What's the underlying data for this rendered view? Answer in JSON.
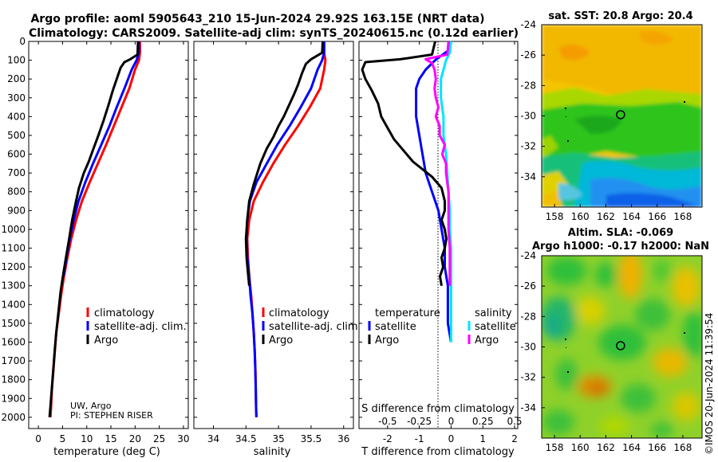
{
  "title": {
    "line1": "Argo profile: aoml 5905643_210 15-Jun-2024 29.92S 163.15E (NRT data)",
    "line2": "Climatology: CARS2009. Satellite-adj clim: synTS_20240615.nc (0.12d earlier)"
  },
  "credit": {
    "institution": "UW, Argo",
    "pi": "PI: STEPHEN RISER"
  },
  "footer": "©IMOS 20-Jun-2024 11:39:54",
  "colors": {
    "argo": "#000000",
    "climatology": "#ff0000",
    "satellite": "#0000ff",
    "sat_salinity": "#00e5ff",
    "argo_salinity": "#ff00ff"
  },
  "chart_data": [
    {
      "id": "temperature",
      "type": "line",
      "xlabel": "temperature (deg C)",
      "xlim": [
        -2,
        31
      ],
      "xticks": [
        0,
        5,
        10,
        15,
        20,
        25,
        30
      ],
      "ylim": [
        0,
        2060
      ],
      "yticks": [
        0,
        100,
        200,
        300,
        400,
        500,
        600,
        700,
        800,
        900,
        1000,
        1100,
        1200,
        1300,
        1400,
        1500,
        1600,
        1700,
        1800,
        1900,
        2000
      ],
      "legend": [
        "climatology",
        "satellite-adj. clim.",
        "Argo"
      ],
      "series": [
        {
          "name": "climatology",
          "color": "#ff0000",
          "points": [
            [
              21.0,
              0
            ],
            [
              21.0,
              60
            ],
            [
              20.8,
              100
            ],
            [
              20.0,
              150
            ],
            [
              18.8,
              250
            ],
            [
              17.2,
              350
            ],
            [
              15.6,
              450
            ],
            [
              14.0,
              550
            ],
            [
              12.3,
              650
            ],
            [
              10.6,
              750
            ],
            [
              9.0,
              850
            ],
            [
              7.8,
              950
            ],
            [
              6.8,
              1050
            ],
            [
              6.0,
              1150
            ],
            [
              5.3,
              1250
            ],
            [
              4.7,
              1350
            ],
            [
              4.2,
              1450
            ],
            [
              3.7,
              1550
            ],
            [
              3.4,
              1650
            ],
            [
              3.1,
              1750
            ],
            [
              2.8,
              1850
            ],
            [
              2.6,
              1950
            ],
            [
              2.5,
              2000
            ]
          ]
        },
        {
          "name": "satellite-adj. clim.",
          "color": "#0000ff",
          "points": [
            [
              20.8,
              0
            ],
            [
              20.8,
              60
            ],
            [
              20.3,
              100
            ],
            [
              19.3,
              150
            ],
            [
              17.8,
              250
            ],
            [
              16.2,
              350
            ],
            [
              14.7,
              450
            ],
            [
              13.0,
              550
            ],
            [
              11.3,
              650
            ],
            [
              9.7,
              750
            ],
            [
              8.3,
              850
            ],
            [
              7.3,
              950
            ],
            [
              6.5,
              1050
            ],
            [
              5.8,
              1150
            ],
            [
              5.2,
              1250
            ]
          ]
        },
        {
          "name": "Argo",
          "color": "#000000",
          "points": [
            [
              20.6,
              0
            ],
            [
              20.5,
              70
            ],
            [
              19.0,
              95
            ],
            [
              17.8,
              110
            ],
            [
              17.0,
              140
            ],
            [
              16.2,
              200
            ],
            [
              15.4,
              260
            ],
            [
              14.6,
              330
            ],
            [
              13.5,
              420
            ],
            [
              12.4,
              500
            ],
            [
              11.4,
              570
            ],
            [
              10.4,
              640
            ],
            [
              9.4,
              700
            ],
            [
              8.4,
              780
            ],
            [
              7.7,
              860
            ],
            [
              7.0,
              950
            ],
            [
              6.3,
              1060
            ],
            [
              5.7,
              1150
            ],
            [
              5.2,
              1230
            ],
            [
              4.6,
              1330
            ],
            [
              4.1,
              1450
            ],
            [
              3.7,
              1550
            ],
            [
              3.4,
              1640
            ],
            [
              3.1,
              1740
            ],
            [
              2.8,
              1840
            ],
            [
              2.5,
              1940
            ],
            [
              2.3,
              2000
            ]
          ]
        }
      ]
    },
    {
      "id": "salinity",
      "type": "line",
      "xlabel": "salinity",
      "xlim": [
        33.7,
        36.15
      ],
      "xticks": [
        34,
        34.5,
        35,
        35.5,
        36
      ],
      "ylim": [
        0,
        2060
      ],
      "legend": [
        "climatology",
        "satellite-adj. clim.",
        "Argo"
      ],
      "series": [
        {
          "name": "climatology",
          "color": "#ff0000",
          "points": [
            [
              35.7,
              0
            ],
            [
              35.7,
              60
            ],
            [
              35.72,
              100
            ],
            [
              35.7,
              150
            ],
            [
              35.64,
              250
            ],
            [
              35.48,
              350
            ],
            [
              35.3,
              450
            ],
            [
              35.1,
              550
            ],
            [
              34.92,
              650
            ],
            [
              34.76,
              750
            ],
            [
              34.62,
              850
            ],
            [
              34.55,
              950
            ],
            [
              34.52,
              1050
            ],
            [
              34.53,
              1150
            ],
            [
              34.55,
              1250
            ],
            [
              34.58,
              1350
            ],
            [
              34.6,
              1450
            ],
            [
              34.62,
              1550
            ],
            [
              34.635,
              1650
            ],
            [
              34.645,
              1750
            ],
            [
              34.65,
              1850
            ],
            [
              34.655,
              1950
            ],
            [
              34.66,
              2000
            ]
          ]
        },
        {
          "name": "satellite-adj. clim.",
          "color": "#0000ff",
          "points": [
            [
              35.7,
              0
            ],
            [
              35.7,
              60
            ],
            [
              35.67,
              100
            ],
            [
              35.6,
              150
            ],
            [
              35.5,
              250
            ],
            [
              35.34,
              350
            ],
            [
              35.17,
              450
            ],
            [
              34.98,
              550
            ],
            [
              34.82,
              650
            ],
            [
              34.66,
              750
            ],
            [
              34.56,
              850
            ],
            [
              34.52,
              950
            ],
            [
              34.51,
              1050
            ],
            [
              34.52,
              1150
            ],
            [
              34.55,
              1250
            ],
            [
              34.57,
              1350
            ],
            [
              34.6,
              1450
            ],
            [
              34.62,
              1550
            ],
            [
              34.635,
              1650
            ],
            [
              34.645,
              1750
            ],
            [
              34.65,
              1850
            ],
            [
              34.655,
              1950
            ],
            [
              34.66,
              2000
            ]
          ]
        },
        {
          "name": "Argo",
          "color": "#000000",
          "points": [
            [
              35.68,
              0
            ],
            [
              35.67,
              60
            ],
            [
              35.5,
              95
            ],
            [
              35.42,
              120
            ],
            [
              35.36,
              170
            ],
            [
              35.3,
              230
            ],
            [
              35.24,
              280
            ],
            [
              35.16,
              340
            ],
            [
              35.08,
              400
            ],
            [
              35.0,
              450
            ],
            [
              34.92,
              510
            ],
            [
              34.82,
              570
            ],
            [
              34.72,
              650
            ],
            [
              34.62,
              760
            ],
            [
              34.55,
              850
            ],
            [
              34.52,
              950
            ],
            [
              34.5,
              1050
            ],
            [
              34.51,
              1150
            ],
            [
              34.53,
              1230
            ],
            [
              34.55,
              1300
            ]
          ]
        }
      ]
    },
    {
      "id": "difference",
      "type": "line",
      "xlabel": "T difference from climatology",
      "xlabel_top": "S difference from climatology",
      "xlim": [
        -2.9,
        2.1
      ],
      "xticks": [
        -2,
        -1,
        0,
        1,
        2
      ],
      "xlim_top": [
        -0.725,
        0.525
      ],
      "xticks_top": [
        -0.5,
        -0.25,
        0,
        0.25,
        0.5
      ],
      "ylim": [
        0,
        2060
      ],
      "legend_headers": [
        "temperature",
        "salinity"
      ],
      "legend": [
        "satellite",
        "Argo",
        "satellite",
        "Argo"
      ],
      "series": [
        {
          "name": "temperature satellite",
          "color": "#0000ff",
          "axis": "T",
          "points": [
            [
              0,
              0
            ],
            [
              -0.1,
              50
            ],
            [
              -0.5,
              100
            ],
            [
              -0.8,
              150
            ],
            [
              -1.0,
              200
            ],
            [
              -1.1,
              250
            ],
            [
              -1.1,
              300
            ],
            [
              -1.1,
              400
            ],
            [
              -1.0,
              500
            ],
            [
              -0.9,
              600
            ],
            [
              -0.8,
              700
            ],
            [
              -0.6,
              800
            ],
            [
              -0.4,
              900
            ],
            [
              -0.3,
              1000
            ],
            [
              -0.2,
              1100
            ],
            [
              -0.2,
              1200
            ],
            [
              -0.1,
              1300
            ],
            [
              -0.1,
              1400
            ],
            [
              -0.1,
              1500
            ],
            [
              0,
              1600
            ]
          ]
        },
        {
          "name": "temperature Argo",
          "color": "#000000",
          "axis": "T",
          "points": [
            [
              -0.5,
              0
            ],
            [
              -0.6,
              70
            ],
            [
              -1.6,
              95
            ],
            [
              -2.7,
              110
            ],
            [
              -2.8,
              150
            ],
            [
              -2.7,
              200
            ],
            [
              -2.5,
              260
            ],
            [
              -2.3,
              330
            ],
            [
              -2.2,
              400
            ],
            [
              -2.0,
              460
            ],
            [
              -1.8,
              520
            ],
            [
              -1.5,
              580
            ],
            [
              -1.2,
              640
            ],
            [
              -0.6,
              720
            ],
            [
              -0.3,
              780
            ],
            [
              -0.2,
              850
            ],
            [
              -0.2,
              900
            ],
            [
              -0.3,
              950
            ],
            [
              -0.2,
              1000
            ],
            [
              -0.15,
              1050
            ],
            [
              -0.2,
              1100
            ],
            [
              -0.3,
              1150
            ],
            [
              -0.25,
              1200
            ],
            [
              -0.35,
              1250
            ],
            [
              -0.3,
              1300
            ]
          ]
        },
        {
          "name": "salinity satellite",
          "color": "#00e5ff",
          "axis": "S",
          "points": [
            [
              0,
              0
            ],
            [
              -0.01,
              60
            ],
            [
              -0.04,
              100
            ],
            [
              -0.06,
              150
            ],
            [
              -0.08,
              200
            ],
            [
              -0.08,
              300
            ],
            [
              -0.06,
              400
            ],
            [
              -0.06,
              500
            ],
            [
              -0.04,
              600
            ],
            [
              -0.03,
              700
            ],
            [
              -0.02,
              800
            ],
            [
              -0.01,
              900
            ],
            [
              -0.01,
              1000
            ],
            [
              0,
              1100
            ],
            [
              0,
              1200
            ],
            [
              0,
              1300
            ],
            [
              0,
              1400
            ],
            [
              0,
              1500
            ],
            [
              0,
              1600
            ]
          ]
        },
        {
          "name": "salinity Argo",
          "color": "#ff00ff",
          "axis": "S",
          "points": [
            [
              -0.02,
              0
            ],
            [
              -0.03,
              70
            ],
            [
              -0.2,
              95
            ],
            [
              -0.15,
              115
            ],
            [
              -0.13,
              150
            ],
            [
              -0.12,
              200
            ],
            [
              -0.13,
              250
            ],
            [
              -0.12,
              300
            ],
            [
              -0.1,
              350
            ],
            [
              -0.12,
              400
            ],
            [
              -0.09,
              450
            ],
            [
              -0.09,
              500
            ],
            [
              -0.05,
              550
            ],
            [
              -0.07,
              600
            ],
            [
              -0.04,
              650
            ],
            [
              -0.04,
              700
            ],
            [
              -0.03,
              750
            ],
            [
              -0.02,
              800
            ],
            [
              -0.02,
              900
            ],
            [
              -0.02,
              1000
            ],
            [
              -0.01,
              1100
            ],
            [
              -0.01,
              1200
            ],
            [
              -0.01,
              1300
            ]
          ]
        }
      ]
    },
    {
      "id": "sst_map",
      "type": "heatmap",
      "title": "sat. SST: 20.8 Argo: 20.4",
      "xlim": [
        157,
        169.5
      ],
      "xticks": [
        158,
        160,
        162,
        164,
        166,
        168
      ],
      "ylim": [
        -36,
        -24
      ],
      "yticks": [
        -24,
        -26,
        -28,
        -30,
        -32,
        -34
      ],
      "marker": {
        "lon": 163.15,
        "lat": -29.92
      }
    },
    {
      "id": "sla_map",
      "type": "heatmap",
      "title_line1": "Altim. SLA: -0.069",
      "title_line2": "Argo h1000: -0.17 h2000: NaN",
      "xlim": [
        157,
        169.5
      ],
      "xticks": [
        158,
        160,
        162,
        164,
        166,
        168
      ],
      "ylim": [
        -36,
        -24
      ],
      "yticks": [
        -24,
        -26,
        -28,
        -30,
        -32,
        -34
      ],
      "marker": {
        "lon": 163.15,
        "lat": -29.92
      }
    }
  ]
}
